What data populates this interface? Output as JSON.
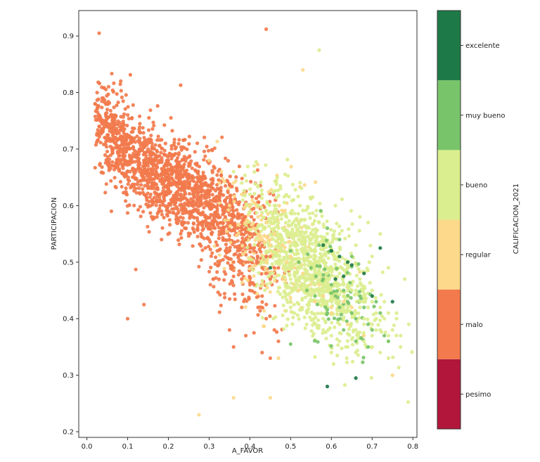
{
  "chart_data": {
    "type": "scatter",
    "title": "",
    "xlabel": "A_FAVOR",
    "ylabel": "PARTICIPACION",
    "xlim": [
      -0.02,
      0.81
    ],
    "ylim": [
      0.19,
      0.945
    ],
    "xticks": [
      0.0,
      0.1,
      0.2,
      0.3,
      0.4,
      0.5,
      0.6,
      0.7,
      0.8
    ],
    "xtick_labels": [
      "0.0",
      "0.1",
      "0.2",
      "0.3",
      "0.4",
      "0.5",
      "0.6",
      "0.7",
      "0.8"
    ],
    "yticks": [
      0.2,
      0.3,
      0.4,
      0.5,
      0.6,
      0.7,
      0.8,
      0.9
    ],
    "ytick_labels": [
      "0.2",
      "0.3",
      "0.4",
      "0.5",
      "0.6",
      "0.7",
      "0.8",
      "0.9"
    ],
    "grid": false,
    "colorbar": {
      "label": "CALIFICACION_2021",
      "categories": [
        "pesimo",
        "malo",
        "regular",
        "bueno",
        "muy bueno",
        "excelente"
      ],
      "colors": [
        "#b2163a",
        "#f27a4c",
        "#fcd98b",
        "#dbee8f",
        "#78c46a",
        "#1d7a48"
      ]
    },
    "series": [
      {
        "category": "pesimo",
        "color": "#b2163a",
        "x": [],
        "y": []
      },
      {
        "category": "malo",
        "color": "#f27a4c",
        "x": [
          0.02,
          0.025,
          0.03,
          0.04,
          0.05,
          0.03,
          0.045,
          0.06,
          0.07,
          0.08,
          0.09,
          0.1,
          0.11,
          0.12,
          0.13,
          0.14,
          0.15,
          0.16,
          0.17,
          0.18,
          0.19,
          0.2,
          0.21,
          0.22,
          0.23,
          0.24,
          0.25,
          0.26,
          0.27,
          0.28,
          0.29,
          0.3,
          0.31,
          0.32,
          0.33,
          0.34,
          0.35,
          0.36,
          0.37,
          0.38,
          0.39,
          0.4,
          0.41,
          0.42,
          0.43,
          0.44,
          0.45,
          0.03,
          0.05,
          0.07,
          0.09,
          0.11,
          0.13,
          0.15,
          0.17,
          0.19,
          0.21,
          0.23,
          0.25,
          0.27,
          0.29,
          0.31,
          0.33,
          0.35,
          0.37,
          0.39,
          0.41,
          0.43,
          0.12,
          0.14,
          0.16,
          0.18,
          0.2,
          0.22,
          0.24,
          0.26,
          0.28,
          0.3,
          0.32,
          0.34,
          0.36,
          0.38,
          0.4,
          0.42,
          0.44,
          0.46,
          0.08,
          0.1,
          0.12,
          0.14,
          0.16,
          0.18,
          0.2,
          0.22,
          0.24,
          0.26,
          0.28,
          0.3,
          0.32,
          0.34,
          0.36,
          0.38,
          0.4,
          0.15,
          0.17,
          0.19,
          0.21,
          0.23,
          0.25,
          0.27,
          0.29,
          0.31,
          0.33,
          0.35,
          0.37,
          0.39,
          0.41,
          0.43,
          0.45,
          0.47,
          0.22,
          0.24,
          0.26,
          0.28,
          0.3,
          0.32,
          0.34,
          0.36,
          0.38,
          0.4,
          0.42,
          0.44,
          0.46,
          0.48,
          0.03,
          0.23,
          0.44,
          0.06,
          0.1,
          0.12,
          0.14,
          0.31,
          0.38,
          0.45,
          0.47,
          0.36,
          0.43,
          0.41,
          0.35,
          0.39
        ],
        "y": [
          0.78,
          0.8,
          0.76,
          0.79,
          0.77,
          0.74,
          0.75,
          0.73,
          0.72,
          0.74,
          0.71,
          0.7,
          0.72,
          0.69,
          0.7,
          0.68,
          0.67,
          0.69,
          0.66,
          0.68,
          0.67,
          0.65,
          0.66,
          0.64,
          0.65,
          0.63,
          0.64,
          0.62,
          0.63,
          0.61,
          0.62,
          0.6,
          0.61,
          0.59,
          0.6,
          0.58,
          0.57,
          0.58,
          0.56,
          0.55,
          0.54,
          0.53,
          0.52,
          0.5,
          0.49,
          0.48,
          0.47,
          0.76,
          0.72,
          0.71,
          0.69,
          0.68,
          0.66,
          0.64,
          0.65,
          0.62,
          0.61,
          0.63,
          0.6,
          0.59,
          0.58,
          0.57,
          0.55,
          0.54,
          0.52,
          0.5,
          0.46,
          0.44,
          0.66,
          0.65,
          0.64,
          0.62,
          0.6,
          0.58,
          0.57,
          0.56,
          0.55,
          0.54,
          0.52,
          0.51,
          0.49,
          0.47,
          0.45,
          0.42,
          0.4,
          0.38,
          0.68,
          0.66,
          0.63,
          0.62,
          0.61,
          0.6,
          0.59,
          0.57,
          0.56,
          0.58,
          0.57,
          0.56,
          0.53,
          0.52,
          0.5,
          0.48,
          0.46,
          0.7,
          0.68,
          0.67,
          0.69,
          0.66,
          0.67,
          0.65,
          0.64,
          0.63,
          0.62,
          0.6,
          0.58,
          0.56,
          0.55,
          0.53,
          0.51,
          0.49,
          0.68,
          0.66,
          0.65,
          0.64,
          0.62,
          0.63,
          0.61,
          0.59,
          0.57,
          0.55,
          0.53,
          0.51,
          0.49,
          0.47,
          0.905,
          0.813,
          0.912,
          0.59,
          0.4,
          0.487,
          0.425,
          0.47,
          0.42,
          0.33,
          0.36,
          0.35,
          0.34,
          0.375,
          0.38,
          0.37
        ]
      },
      {
        "category": "regular",
        "color": "#fcd98b",
        "x": [
          0.3,
          0.33,
          0.36,
          0.38,
          0.4,
          0.42,
          0.44,
          0.46,
          0.48,
          0.5,
          0.52,
          0.54,
          0.56,
          0.58,
          0.6,
          0.35,
          0.39,
          0.43,
          0.47,
          0.51,
          0.55,
          0.59,
          0.63,
          0.41,
          0.45,
          0.49,
          0.53,
          0.57,
          0.61,
          0.65,
          0.44,
          0.48,
          0.52,
          0.56,
          0.6,
          0.64,
          0.68,
          0.275,
          0.36,
          0.53,
          0.75,
          0.45,
          0.47
        ],
        "y": [
          0.68,
          0.66,
          0.64,
          0.62,
          0.6,
          0.58,
          0.57,
          0.55,
          0.53,
          0.51,
          0.5,
          0.48,
          0.46,
          0.44,
          0.42,
          0.6,
          0.57,
          0.54,
          0.52,
          0.49,
          0.47,
          0.45,
          0.43,
          0.56,
          0.53,
          0.5,
          0.48,
          0.46,
          0.44,
          0.42,
          0.5,
          0.47,
          0.45,
          0.43,
          0.41,
          0.39,
          0.37,
          0.23,
          0.26,
          0.84,
          0.3,
          0.26,
          0.33
        ]
      },
      {
        "category": "bueno",
        "color": "#dbee8f",
        "x": [
          0.42,
          0.44,
          0.46,
          0.48,
          0.5,
          0.52,
          0.54,
          0.56,
          0.58,
          0.6,
          0.62,
          0.64,
          0.66,
          0.68,
          0.7,
          0.72,
          0.74,
          0.76,
          0.45,
          0.47,
          0.49,
          0.51,
          0.53,
          0.55,
          0.57,
          0.59,
          0.61,
          0.63,
          0.65,
          0.67,
          0.69,
          0.71,
          0.73,
          0.75,
          0.77,
          0.43,
          0.46,
          0.49,
          0.52,
          0.55,
          0.58,
          0.61,
          0.64,
          0.67,
          0.7,
          0.73,
          0.76,
          0.79,
          0.48,
          0.5,
          0.52,
          0.54,
          0.56,
          0.58,
          0.6,
          0.62,
          0.64,
          0.66,
          0.68,
          0.7,
          0.72,
          0.74,
          0.5,
          0.53,
          0.56,
          0.59,
          0.62,
          0.65,
          0.68,
          0.71,
          0.74,
          0.77,
          0.47,
          0.51,
          0.55,
          0.59,
          0.63,
          0.67,
          0.71,
          0.57,
          0.62,
          0.66,
          0.7,
          0.74,
          0.78,
          0.58,
          0.6,
          0.62,
          0.64,
          0.66,
          0.68,
          0.7,
          0.72,
          0.74,
          0.5,
          0.54,
          0.58,
          0.62,
          0.66,
          0.7,
          0.36,
          0.38,
          0.4,
          0.61,
          0.67,
          0.69,
          0.72,
          0.57,
          0.6
        ],
        "y": [
          0.6,
          0.59,
          0.57,
          0.56,
          0.55,
          0.54,
          0.52,
          0.51,
          0.5,
          0.49,
          0.48,
          0.46,
          0.45,
          0.44,
          0.43,
          0.42,
          0.41,
          0.4,
          0.57,
          0.56,
          0.55,
          0.53,
          0.52,
          0.51,
          0.5,
          0.48,
          0.47,
          0.46,
          0.45,
          0.43,
          0.42,
          0.41,
          0.4,
          0.38,
          0.37,
          0.62,
          0.6,
          0.58,
          0.57,
          0.55,
          0.53,
          0.51,
          0.49,
          0.47,
          0.45,
          0.43,
          0.41,
          0.39,
          0.52,
          0.5,
          0.49,
          0.48,
          0.46,
          0.45,
          0.44,
          0.43,
          0.42,
          0.41,
          0.4,
          0.39,
          0.38,
          0.37,
          0.47,
          0.46,
          0.44,
          0.43,
          0.42,
          0.41,
          0.39,
          0.38,
          0.36,
          0.35,
          0.5,
          0.48,
          0.47,
          0.45,
          0.44,
          0.42,
          0.4,
          0.57,
          0.55,
          0.53,
          0.51,
          0.49,
          0.47,
          0.38,
          0.37,
          0.36,
          0.35,
          0.34,
          0.36,
          0.35,
          0.34,
          0.33,
          0.42,
          0.41,
          0.4,
          0.39,
          0.38,
          0.37,
          0.66,
          0.64,
          0.62,
          0.6,
          0.58,
          0.57,
          0.55,
          0.875,
          0.34
        ]
      },
      {
        "category": "muy bueno",
        "color": "#78c46a",
        "x": [
          0.5,
          0.52,
          0.55,
          0.57,
          0.58,
          0.6,
          0.61,
          0.62,
          0.63,
          0.64,
          0.65,
          0.66,
          0.67,
          0.68,
          0.69,
          0.7,
          0.71,
          0.72,
          0.73,
          0.74,
          0.54,
          0.56,
          0.59,
          0.63,
          0.66,
          0.69,
          0.59,
          0.62,
          0.65,
          0.5
        ],
        "y": [
          0.52,
          0.5,
          0.49,
          0.53,
          0.47,
          0.46,
          0.44,
          0.42,
          0.45,
          0.43,
          0.41,
          0.4,
          0.44,
          0.42,
          0.39,
          0.38,
          0.43,
          0.41,
          0.37,
          0.36,
          0.45,
          0.44,
          0.41,
          0.38,
          0.36,
          0.35,
          0.56,
          0.54,
          0.51,
          0.355
        ]
      },
      {
        "category": "excelente",
        "color": "#1d7a48",
        "x": [
          0.58,
          0.6,
          0.62,
          0.64,
          0.65,
          0.68,
          0.72,
          0.59,
          0.61,
          0.66,
          0.7,
          0.75,
          0.45,
          0.63,
          0.6
        ],
        "y": [
          0.53,
          0.52,
          0.51,
          0.5,
          0.495,
          0.48,
          0.525,
          0.28,
          0.47,
          0.295,
          0.44,
          0.43,
          0.49,
          0.475,
          0.52
        ]
      }
    ],
    "cloud": [
      {
        "category": "malo",
        "n": 1200,
        "cx": 0.21,
        "cy": 0.64,
        "sx": 0.1,
        "sy": 0.055,
        "rho": -0.7,
        "xmin": 0.02,
        "xmax": 0.49
      },
      {
        "category": "malo",
        "n": 260,
        "cx": 0.06,
        "cy": 0.74,
        "sx": 0.035,
        "sy": 0.04,
        "rho": -0.5,
        "xmin": 0.02,
        "xmax": 0.14
      },
      {
        "category": "malo",
        "n": 300,
        "cx": 0.37,
        "cy": 0.53,
        "sx": 0.05,
        "sy": 0.06,
        "rho": -0.4,
        "xmin": 0.26,
        "xmax": 0.5
      },
      {
        "category": "regular",
        "n": 170,
        "cx": 0.44,
        "cy": 0.53,
        "sx": 0.06,
        "sy": 0.06,
        "rho": -0.4,
        "xmin": 0.3,
        "xmax": 0.7
      },
      {
        "category": "bueno",
        "n": 1000,
        "cx": 0.55,
        "cy": 0.49,
        "sx": 0.075,
        "sy": 0.065,
        "rho": -0.55,
        "xmin": 0.38,
        "xmax": 0.8
      },
      {
        "category": "muy bueno",
        "n": 50,
        "cx": 0.61,
        "cy": 0.45,
        "sx": 0.05,
        "sy": 0.06,
        "rho": -0.3,
        "xmin": 0.48,
        "xmax": 0.76
      }
    ]
  }
}
